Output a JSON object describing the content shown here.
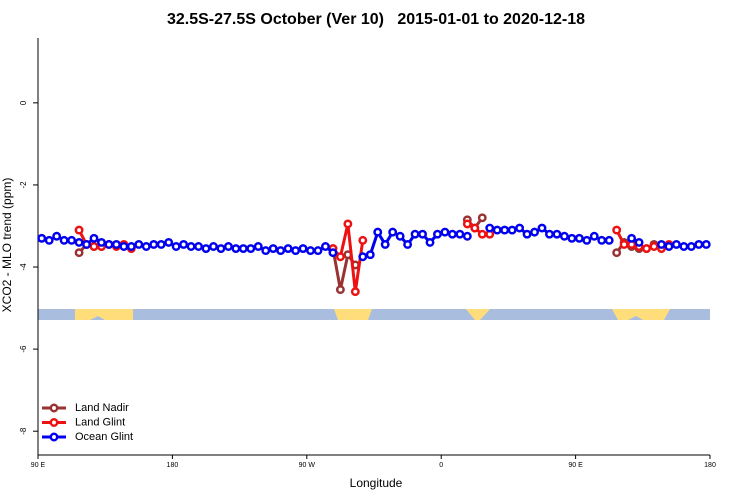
{
  "chart_data": {
    "type": "line",
    "title": "32.5S-27.5S October (Ver 10)   2015-01-01 to 2020-12-18",
    "x_label": "Longitude",
    "y_label": "XCO2 - MLO trend (ppm)",
    "xlim": [
      90,
      540
    ],
    "xticks": [
      {
        "value": 90,
        "label": "90 E"
      },
      {
        "value": 180,
        "label": "180"
      },
      {
        "value": 270,
        "label": "90 W"
      },
      {
        "value": 360,
        "label": "0"
      },
      {
        "value": 450,
        "label": "90 E"
      },
      {
        "value": 540,
        "label": "180"
      }
    ],
    "ylim": [
      -8.58,
      1.58
    ],
    "yticks": [
      0,
      -2,
      -4,
      -6,
      -8
    ],
    "legend": "lower left",
    "x": [
      92.5,
      97.5,
      102.5,
      107.5,
      112.5,
      117.5,
      122.5,
      127.5,
      132.5,
      137.5,
      142.5,
      147.5,
      152.5,
      157.5,
      162.5,
      167.5,
      172.5,
      177.5,
      182.5,
      187.5,
      192.5,
      197.5,
      202.5,
      207.5,
      212.5,
      217.5,
      222.5,
      227.5,
      232.5,
      237.5,
      242.5,
      247.5,
      252.5,
      257.5,
      262.5,
      267.5,
      272.5,
      277.5,
      282.5,
      287.5,
      292.5,
      297.5,
      302.5,
      307.5,
      312.5,
      317.5,
      322.5,
      327.5,
      332.5,
      337.5,
      342.5,
      347.5,
      352.5,
      357.5,
      362.5,
      367.5,
      372.5,
      377.5,
      382.5,
      387.5,
      392.5,
      397.5,
      402.5,
      407.5,
      412.5,
      417.5,
      422.5,
      427.5,
      432.5,
      437.5,
      442.5,
      447.5,
      452.5,
      457.5,
      462.5,
      467.5,
      472.5,
      477.5,
      482.5,
      487.5,
      492.5,
      497.5,
      502.5,
      507.5,
      512.5,
      517.5,
      522.5,
      527.5,
      532.5,
      537.5
    ],
    "series": [
      {
        "name": "Land Nadir",
        "color": "#993333",
        "values": [
          null,
          null,
          null,
          null,
          null,
          -3.65,
          -3.45,
          -3.5,
          -3.5,
          null,
          null,
          null,
          null,
          null,
          null,
          null,
          null,
          null,
          null,
          null,
          null,
          null,
          null,
          null,
          null,
          null,
          null,
          null,
          null,
          null,
          null,
          null,
          null,
          null,
          null,
          null,
          null,
          null,
          null,
          -3.55,
          -4.55,
          -3.7,
          -3.95,
          null,
          null,
          null,
          null,
          null,
          null,
          null,
          null,
          null,
          null,
          null,
          null,
          null,
          null,
          -2.85,
          -3.05,
          -2.8,
          null,
          null,
          null,
          null,
          null,
          null,
          null,
          null,
          null,
          null,
          null,
          null,
          null,
          null,
          null,
          null,
          null,
          -3.65,
          -3.4,
          -3.5,
          -3.55,
          -3.55,
          -3.45,
          null,
          null,
          null,
          null,
          null,
          null,
          null
        ]
      },
      {
        "name": "Land Glint",
        "color": "#ee1111",
        "values": [
          null,
          null,
          null,
          null,
          null,
          -3.1,
          -3.45,
          -3.5,
          -3.5,
          -3.45,
          -3.5,
          -3.45,
          -3.55,
          null,
          null,
          null,
          null,
          null,
          null,
          null,
          null,
          null,
          null,
          null,
          null,
          null,
          null,
          null,
          null,
          null,
          null,
          null,
          null,
          null,
          null,
          null,
          null,
          null,
          null,
          -3.55,
          -3.75,
          -2.95,
          -4.6,
          -3.35,
          null,
          null,
          null,
          null,
          null,
          null,
          null,
          null,
          null,
          null,
          null,
          null,
          null,
          -2.95,
          -3.05,
          -3.2,
          -3.2,
          null,
          null,
          null,
          null,
          null,
          null,
          null,
          null,
          null,
          null,
          null,
          null,
          null,
          null,
          null,
          null,
          -3.1,
          -3.45,
          -3.45,
          -3.5,
          -3.55,
          -3.5,
          -3.55,
          -3.45,
          null,
          null,
          null,
          null,
          null
        ]
      },
      {
        "name": "Ocean Glint",
        "color": "#0000ee",
        "values": [
          -3.3,
          -3.35,
          -3.25,
          -3.35,
          -3.35,
          -3.4,
          -3.45,
          -3.3,
          -3.4,
          -3.45,
          -3.45,
          -3.5,
          -3.5,
          -3.45,
          -3.5,
          -3.45,
          -3.45,
          -3.4,
          -3.5,
          -3.45,
          -3.5,
          -3.5,
          -3.55,
          -3.5,
          -3.55,
          -3.5,
          -3.55,
          -3.55,
          -3.55,
          -3.5,
          -3.6,
          -3.55,
          -3.6,
          -3.55,
          -3.6,
          -3.55,
          -3.6,
          -3.6,
          -3.5,
          -3.65,
          null,
          null,
          null,
          -3.75,
          -3.7,
          -3.15,
          -3.45,
          -3.15,
          -3.25,
          -3.45,
          -3.2,
          -3.2,
          -3.4,
          -3.2,
          -3.15,
          -3.2,
          -3.2,
          -3.25,
          null,
          null,
          -3.05,
          -3.1,
          -3.1,
          -3.1,
          -3.05,
          -3.2,
          -3.15,
          -3.05,
          -3.2,
          -3.2,
          -3.25,
          -3.3,
          -3.3,
          -3.35,
          -3.25,
          -3.35,
          -3.35,
          null,
          null,
          -3.3,
          -3.4,
          null,
          null,
          -3.45,
          -3.5,
          -3.45,
          -3.5,
          -3.5,
          -3.45,
          -3.45
        ]
      }
    ]
  }
}
